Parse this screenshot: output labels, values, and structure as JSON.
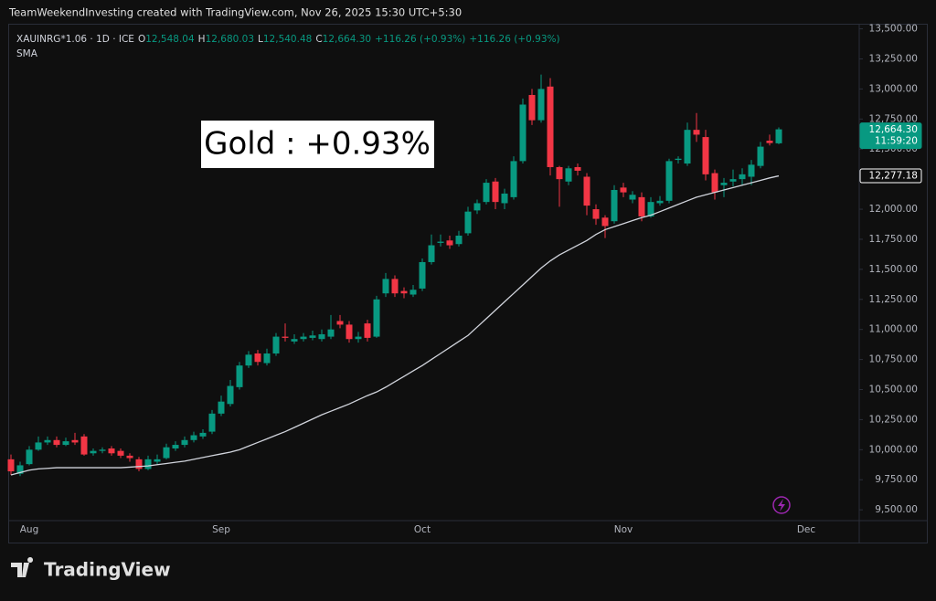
{
  "header": {
    "text": "TeamWeekendInvesting created with TradingView.com, Nov 26, 2025 15:30 UTC+5:30"
  },
  "footer": {
    "brand": "TradingView"
  },
  "chart_data": {
    "type": "candlestick",
    "symbol": "XAUINRG*1.06 · 1D · ICE",
    "ohlc_legend": [
      {
        "label": "O",
        "value": "12,548.04"
      },
      {
        "label": "H",
        "value": "12,680.03"
      },
      {
        "label": "L",
        "value": "12,540.48"
      },
      {
        "label": "C",
        "value": "12,664.30"
      },
      {
        "label": "",
        "value": "+116.26 (+0.93%)"
      },
      {
        "label": "",
        "value": "+116.26 (+0.93%)"
      }
    ],
    "annotation": "Gold : +0.93%",
    "up_color": "#089981",
    "down_color": "#f23645",
    "categories": [
      null,
      null,
      "Aug",
      null,
      null,
      null,
      null,
      null,
      null,
      null,
      null,
      null,
      null,
      null,
      null,
      null,
      null,
      null,
      null,
      null,
      null,
      null,
      null,
      "Sep",
      null,
      null,
      null,
      null,
      null,
      null,
      null,
      null,
      null,
      null,
      null,
      null,
      null,
      null,
      null,
      null,
      null,
      null,
      null,
      null,
      null,
      "Oct",
      null,
      null,
      null,
      null,
      null,
      null,
      null,
      null,
      null,
      null,
      null,
      null,
      null,
      null,
      null,
      null,
      null,
      null,
      null,
      null,
      null,
      "Nov",
      null,
      null,
      null,
      null,
      null,
      null,
      null,
      null,
      null,
      null,
      null,
      null,
      null,
      null,
      null,
      null,
      null,
      null,
      null,
      "Dec"
    ],
    "ohlc": {
      "open": [
        9920,
        9800,
        9880,
        10000,
        10060,
        10080,
        10040,
        10080,
        10110,
        9970,
        9990,
        10010,
        9990,
        9950,
        9920,
        9840,
        9900,
        9930,
        10010,
        10040,
        10080,
        10110,
        10150,
        10300,
        10380,
        10520,
        10700,
        10800,
        10720,
        10800,
        10940,
        10900,
        10920,
        10930,
        10920,
        10940,
        11070,
        11040,
        10920,
        11050,
        10940,
        11300,
        11420,
        11320,
        11290,
        11340,
        11560,
        11720,
        11740,
        11710,
        11800,
        11990,
        12060,
        12230,
        12050,
        12100,
        12400,
        12950,
        12740,
        13020,
        12350,
        12230,
        12350,
        12270,
        12000,
        11930,
        11900,
        12180,
        12080,
        12100,
        11940,
        12050,
        12070,
        12410,
        12380,
        12660,
        12600,
        12300,
        12200,
        12230,
        12250,
        12270,
        12360,
        12570,
        12548.04,
        null,
        null,
        null
      ],
      "high": [
        9960,
        9900,
        10030,
        10110,
        10110,
        10110,
        10100,
        10140,
        10130,
        10010,
        10020,
        10030,
        10010,
        9970,
        9940,
        9950,
        9960,
        10050,
        10070,
        10110,
        10150,
        10170,
        10330,
        10450,
        10580,
        10730,
        10820,
        10830,
        10840,
        10970,
        11050,
        10960,
        10970,
        10990,
        11000,
        11120,
        11120,
        11070,
        10980,
        11080,
        11280,
        11470,
        11450,
        11350,
        11370,
        11590,
        11790,
        11790,
        11780,
        11820,
        12020,
        12080,
        12250,
        12260,
        12170,
        12440,
        12920,
        13000,
        13120,
        13090,
        12360,
        12360,
        12380,
        12300,
        12040,
        11950,
        12200,
        12220,
        12150,
        12140,
        12100,
        12110,
        12420,
        12440,
        12720,
        12800,
        12660,
        12330,
        12260,
        12330,
        12340,
        12410,
        12560,
        12620,
        12680.03,
        null,
        null,
        null
      ],
      "low": [
        9790,
        9780,
        9870,
        9990,
        10040,
        10020,
        10030,
        10040,
        9950,
        9950,
        9970,
        9950,
        9930,
        9900,
        9820,
        9830,
        9880,
        9920,
        9990,
        10020,
        10060,
        10090,
        10130,
        10280,
        10360,
        10500,
        10680,
        10700,
        10700,
        10780,
        10900,
        10880,
        10900,
        10910,
        10900,
        10920,
        11010,
        10890,
        10890,
        10900,
        10930,
        11270,
        11270,
        11260,
        11270,
        11320,
        11540,
        11690,
        11670,
        11690,
        11780,
        11960,
        12040,
        12000,
        12000,
        12080,
        12380,
        12700,
        12720,
        12280,
        12020,
        12200,
        12280,
        11950,
        11870,
        11760,
        11880,
        12100,
        12050,
        11900,
        11930,
        12030,
        12050,
        12380,
        12360,
        12560,
        12240,
        12080,
        12100,
        12190,
        12200,
        12200,
        12340,
        12530,
        12540.48,
        null,
        null,
        null
      ],
      "close": [
        9820,
        9870,
        10000,
        10060,
        10080,
        10040,
        10070,
        10060,
        9960,
        9990,
        10000,
        9970,
        9950,
        9930,
        9840,
        9920,
        9920,
        10020,
        10040,
        10080,
        10120,
        10140,
        10300,
        10400,
        10530,
        10700,
        10790,
        10730,
        10800,
        10940,
        10930,
        10920,
        10940,
        10950,
        10960,
        11000,
        11040,
        10920,
        10940,
        10930,
        11250,
        11420,
        11300,
        11300,
        11330,
        11560,
        11700,
        11730,
        11700,
        11780,
        11980,
        12050,
        12220,
        12060,
        12130,
        12400,
        12870,
        12740,
        13000,
        12350,
        12250,
        12340,
        12320,
        12030,
        11920,
        11860,
        12160,
        12140,
        12120,
        11940,
        12060,
        12070,
        12400,
        12420,
        12660,
        12620,
        12290,
        12140,
        12220,
        12250,
        12290,
        12370,
        12520,
        12550,
        12664.3,
        null,
        null,
        null
      ]
    },
    "sma": {
      "name": "SMA",
      "color": "#d1d4dc",
      "values": [
        9790,
        9810,
        9830,
        9840,
        9845,
        9850,
        9850,
        9850,
        9850,
        9850,
        9850,
        9850,
        9850,
        9855,
        9860,
        9865,
        9875,
        9885,
        9895,
        9905,
        9920,
        9935,
        9950,
        9965,
        9980,
        10000,
        10030,
        10060,
        10090,
        10120,
        10150,
        10185,
        10220,
        10255,
        10290,
        10320,
        10350,
        10380,
        10415,
        10450,
        10480,
        10520,
        10565,
        10610,
        10655,
        10700,
        10750,
        10800,
        10850,
        10900,
        10950,
        11020,
        11090,
        11160,
        11230,
        11300,
        11370,
        11440,
        11510,
        11570,
        11620,
        11660,
        11700,
        11740,
        11790,
        11830,
        11855,
        11880,
        11905,
        11930,
        11950,
        11980,
        12010,
        12040,
        12070,
        12100,
        12120,
        12140,
        12160,
        12180,
        12200,
        12220,
        12240,
        12260,
        12277.18,
        null,
        null,
        null
      ]
    },
    "price_labels": [
      {
        "value": 12664.3,
        "label": "12,664.30",
        "sub": "11:59:20",
        "color": "#089981"
      },
      {
        "value": 12277.18,
        "label": "12,277.18",
        "color": "#ffffff"
      }
    ],
    "ylim": [
      9410,
      13550
    ],
    "yticks": [
      {
        "value": 9500,
        "label": "9,500.00"
      },
      {
        "value": 9750,
        "label": "9,750.00"
      },
      {
        "value": 10000,
        "label": "10,000.00"
      },
      {
        "value": 10250,
        "label": "10,250.00"
      },
      {
        "value": 10500,
        "label": "10,500.00"
      },
      {
        "value": 10750,
        "label": "10,750.00"
      },
      {
        "value": 11000,
        "label": "11,000.00"
      },
      {
        "value": 11250,
        "label": "11,250.00"
      },
      {
        "value": 11500,
        "label": "11,500.00"
      },
      {
        "value": 11750,
        "label": "11,750.00"
      },
      {
        "value": 12000,
        "label": "12,000.00"
      },
      {
        "value": 12250,
        "label": "12,250.00"
      },
      {
        "value": 12500,
        "label": "12,500.00"
      },
      {
        "value": 12750,
        "label": "12,750.00"
      },
      {
        "value": 13000,
        "label": "13,000.00"
      },
      {
        "value": 13250,
        "label": "13,250.00"
      },
      {
        "value": 13500,
        "label": "13,500.00"
      }
    ],
    "grid": false
  }
}
